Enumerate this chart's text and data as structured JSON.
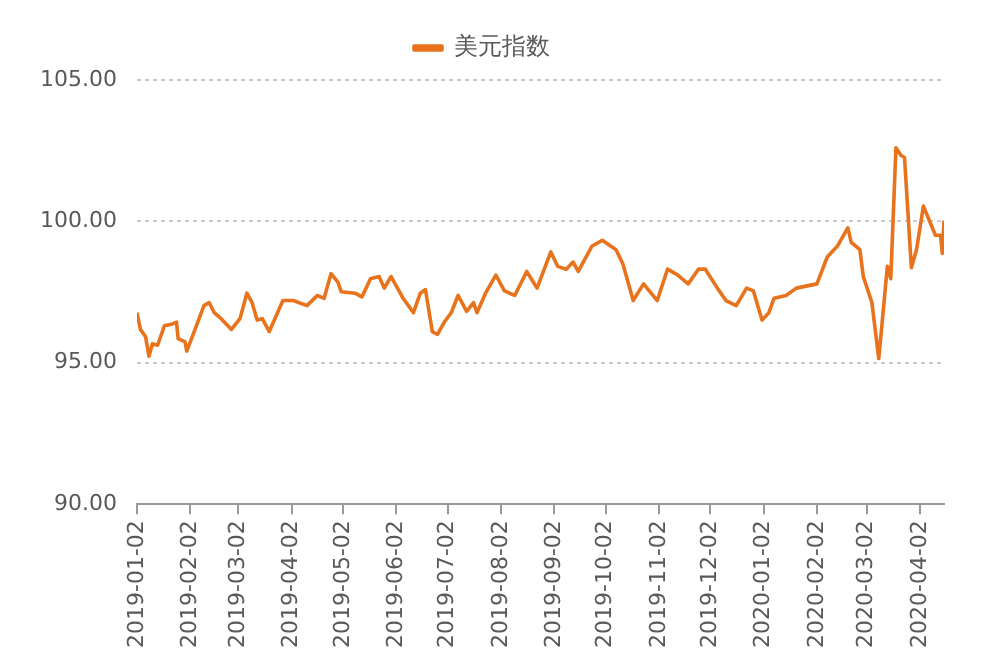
{
  "chart_data": {
    "type": "line",
    "legend": "top",
    "grid": "y",
    "marker": "none",
    "line_style": "solid",
    "x": [
      "2019-01-02",
      "2019-01-04",
      "2019-01-07",
      "2019-01-09",
      "2019-01-11",
      "2019-01-14",
      "2019-01-18",
      "2019-01-22",
      "2019-01-25",
      "2019-01-26",
      "2019-01-30",
      "2019-01-31",
      "2019-02-04",
      "2019-02-10",
      "2019-02-13",
      "2019-02-16",
      "2019-02-20",
      "2019-02-26",
      "2019-03-03",
      "2019-03-07",
      "2019-03-10",
      "2019-03-13",
      "2019-03-16",
      "2019-03-20",
      "2019-03-23",
      "2019-03-28",
      "2019-04-03",
      "2019-04-11",
      "2019-04-17",
      "2019-04-21",
      "2019-04-25",
      "2019-04-29",
      "2019-05-01",
      "2019-05-09",
      "2019-05-13",
      "2019-05-18",
      "2019-05-23",
      "2019-05-26",
      "2019-05-30",
      "2019-06-06",
      "2019-06-12",
      "2019-06-16",
      "2019-06-19",
      "2019-06-23",
      "2019-06-26",
      "2019-06-30",
      "2019-07-04",
      "2019-07-08",
      "2019-07-13",
      "2019-07-17",
      "2019-07-19",
      "2019-07-24",
      "2019-07-30",
      "2019-08-04",
      "2019-08-10",
      "2019-08-17",
      "2019-08-23",
      "2019-08-31",
      "2019-09-04",
      "2019-09-09",
      "2019-09-13",
      "2019-09-16",
      "2019-09-24",
      "2019-09-30",
      "2019-10-08",
      "2019-10-12",
      "2019-10-18",
      "2019-10-24",
      "2019-11-01",
      "2019-11-07",
      "2019-11-13",
      "2019-11-19",
      "2019-11-25",
      "2019-11-29",
      "2019-12-06",
      "2019-12-11",
      "2019-12-17",
      "2019-12-23",
      "2019-12-27",
      "2020-01-01",
      "2020-01-05",
      "2020-01-08",
      "2020-01-15",
      "2020-01-21",
      "2020-02-02",
      "2020-02-08",
      "2020-02-14",
      "2020-02-20",
      "2020-02-22",
      "2020-02-27",
      "2020-02-29",
      "2020-03-05",
      "2020-03-09",
      "2020-03-11",
      "2020-03-14",
      "2020-03-16",
      "2020-03-19",
      "2020-03-22",
      "2020-03-24",
      "2020-03-28",
      "2020-03-31",
      "2020-04-04",
      "2020-04-08",
      "2020-04-11",
      "2020-04-14",
      "2020-04-15",
      "2020-04-16"
    ],
    "series": [
      {
        "name": "美元指数",
        "color": "#e8731c",
        "values": [
          96.77,
          96.18,
          95.92,
          95.23,
          95.67,
          95.62,
          96.31,
          96.36,
          96.44,
          95.85,
          95.74,
          95.41,
          96.05,
          97.02,
          97.13,
          96.77,
          96.56,
          96.18,
          96.56,
          97.46,
          97.13,
          96.51,
          96.56,
          96.1,
          96.51,
          97.2,
          97.2,
          97.02,
          97.38,
          97.28,
          98.15,
          97.85,
          97.51,
          97.46,
          97.33,
          97.97,
          98.05,
          97.64,
          98.05,
          97.28,
          96.77,
          97.46,
          97.59,
          96.1,
          96.0,
          96.44,
          96.77,
          97.38,
          96.82,
          97.13,
          96.77,
          97.46,
          98.1,
          97.54,
          97.38,
          98.23,
          97.64,
          98.92,
          98.41,
          98.31,
          98.56,
          98.23,
          99.13,
          99.33,
          99.0,
          98.49,
          97.2,
          97.79,
          97.2,
          98.31,
          98.1,
          97.79,
          98.31,
          98.31,
          97.64,
          97.2,
          97.02,
          97.64,
          97.54,
          96.51,
          96.77,
          97.28,
          97.38,
          97.64,
          97.79,
          98.74,
          99.13,
          99.77,
          99.26,
          99.0,
          98.05,
          97.13,
          95.15,
          96.44,
          98.41,
          97.97,
          102.6,
          102.33,
          102.26,
          98.36,
          99.0,
          100.54,
          99.95,
          99.51,
          99.51,
          98.87,
          100.03
        ]
      }
    ],
    "xlim": [
      "2019-01-02",
      "2020-04-16"
    ],
    "xticks": [
      "2019-01-02",
      "2019-02-02",
      "2019-03-02",
      "2019-04-02",
      "2019-05-02",
      "2019-06-02",
      "2019-07-02",
      "2019-08-02",
      "2019-09-02",
      "2019-10-02",
      "2019-11-02",
      "2019-12-02",
      "2020-01-02",
      "2020-02-02",
      "2020-03-02",
      "2020-04-02"
    ],
    "ylim": [
      90,
      105
    ],
    "yticks": [
      {
        "value": 90,
        "label": "90.00"
      },
      {
        "value": 95,
        "label": "95.00"
      },
      {
        "value": 100,
        "label": "100.00"
      },
      {
        "value": 105,
        "label": "105.00"
      }
    ]
  }
}
